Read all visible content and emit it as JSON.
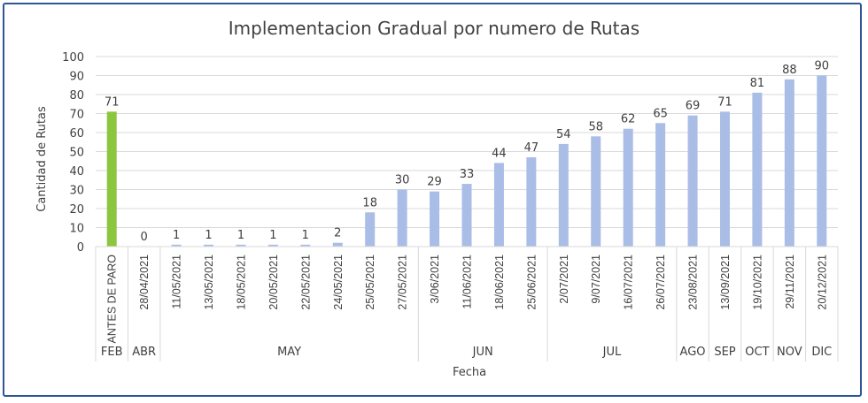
{
  "chart_data": {
    "type": "bar",
    "title": "Implementacion Gradual por numero de Rutas",
    "xlabel": "Fecha",
    "ylabel": "Cantidad de Rutas",
    "ylim": [
      0,
      100
    ],
    "yticks": [
      0,
      10,
      20,
      30,
      40,
      50,
      60,
      70,
      80,
      90,
      100
    ],
    "grid": true,
    "legend": "none",
    "categories": [
      "ANTES DE PARO",
      "28/04/2021",
      "11/05/2021",
      "13/05/2021",
      "18/05/2021",
      "20/05/2021",
      "22/05/2021",
      "24/05/2021",
      "25/05/2021",
      "27/05/2021",
      "3/06/2021",
      "11/06/2021",
      "18/06/2021",
      "25/06/2021",
      "2/07/2021",
      "9/07/2021",
      "16/07/2021",
      "26/07/2021",
      "23/08/2021",
      "13/09/2021",
      "19/10/2021",
      "29/11/2021",
      "20/12/2021"
    ],
    "values": [
      71,
      0,
      1,
      1,
      1,
      1,
      1,
      2,
      18,
      30,
      29,
      33,
      44,
      47,
      54,
      58,
      62,
      65,
      69,
      71,
      81,
      88,
      90
    ],
    "bar_colors": [
      "#8cc63f",
      "#a9bde6",
      "#a9bde6",
      "#a9bde6",
      "#a9bde6",
      "#a9bde6",
      "#a9bde6",
      "#a9bde6",
      "#a9bde6",
      "#a9bde6",
      "#a9bde6",
      "#a9bde6",
      "#a9bde6",
      "#a9bde6",
      "#a9bde6",
      "#a9bde6",
      "#a9bde6",
      "#a9bde6",
      "#a9bde6",
      "#a9bde6",
      "#a9bde6",
      "#a9bde6",
      "#a9bde6"
    ],
    "groups": [
      {
        "label": "FEB",
        "start": 0,
        "end": 0
      },
      {
        "label": "ABR",
        "start": 1,
        "end": 1
      },
      {
        "label": "MAY",
        "start": 2,
        "end": 9
      },
      {
        "label": "JUN",
        "start": 10,
        "end": 13
      },
      {
        "label": "JUL",
        "start": 14,
        "end": 17
      },
      {
        "label": "AGO",
        "start": 18,
        "end": 18
      },
      {
        "label": "SEP",
        "start": 19,
        "end": 19
      },
      {
        "label": "OCT",
        "start": 20,
        "end": 20
      },
      {
        "label": "NOV",
        "start": 21,
        "end": 21
      },
      {
        "label": "DIC",
        "start": 22,
        "end": 22
      }
    ]
  },
  "colors": {
    "frame": "#2f5597",
    "gridline": "#d9d9d9",
    "axis_text": "#404040"
  }
}
